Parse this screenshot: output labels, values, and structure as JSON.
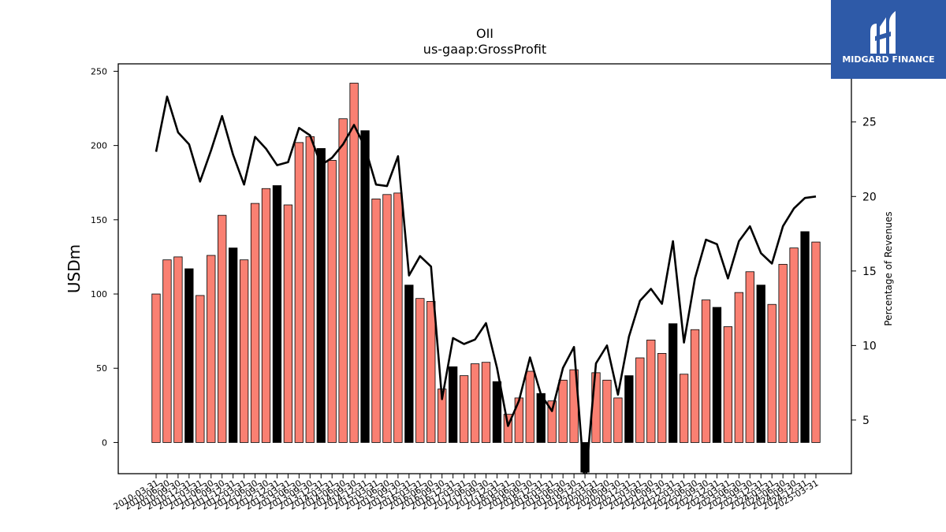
{
  "brand": {
    "name": "MIDGARD FINANCE",
    "bg_color": "#2e5aa8"
  },
  "chart_data": {
    "type": "bar",
    "title": "OII",
    "subtitle": "us-gaap:GrossProfit",
    "ylabel": "USDm",
    "y2label": "Percentage of Revenues",
    "ylim": [
      -21,
      255
    ],
    "y2lim": [
      1.4,
      28.9
    ],
    "yticks": [
      0,
      50,
      100,
      150,
      200,
      250
    ],
    "y2ticks": [
      5,
      10,
      15,
      20,
      25
    ],
    "grid": false,
    "categories": [
      "2010-03-31",
      "2010-06-30",
      "2010-09-30",
      "2010-12-31",
      "2011-03-31",
      "2011-06-30",
      "2011-09-30",
      "2011-12-31",
      "2012-03-31",
      "2012-06-30",
      "2012-09-30",
      "2012-12-31",
      "2013-03-31",
      "2013-06-30",
      "2013-09-30",
      "2013-12-31",
      "2014-03-31",
      "2014-06-30",
      "2014-09-30",
      "2014-12-31",
      "2015-03-31",
      "2015-06-30",
      "2015-09-30",
      "2015-12-31",
      "2016-03-31",
      "2016-06-30",
      "2016-09-30",
      "2016-12-31",
      "2017-03-31",
      "2017-06-30",
      "2017-09-30",
      "2017-12-31",
      "2018-03-31",
      "2018-06-30",
      "2018-09-30",
      "2018-12-31",
      "2019-03-31",
      "2019-06-30",
      "2019-09-30",
      "2019-12-31",
      "2020-03-31",
      "2020-06-30",
      "2020-09-30",
      "2020-12-31",
      "2021-03-31",
      "2021-06-30",
      "2021-09-30",
      "2021-12-31",
      "2022-03-31",
      "2022-06-30",
      "2022-09-30",
      "2022-12-31",
      "2023-03-31",
      "2023-06-30",
      "2023-09-30",
      "2023-12-31",
      "2024-03-31",
      "2024-06-30",
      "2024-09-30",
      "2024-12-31",
      "2025-03-31"
    ],
    "series": [
      {
        "kind": "bar",
        "axis": "left",
        "color": "#fa8072",
        "q4_color": "#000000",
        "values": [
          100,
          123,
          125,
          117,
          99,
          126,
          153,
          131,
          123,
          161,
          171,
          173,
          160,
          202,
          206,
          198,
          190,
          218,
          242,
          210,
          164,
          167,
          168,
          106,
          97,
          95,
          36,
          51,
          45,
          53,
          54,
          41,
          19,
          30,
          48,
          33,
          28,
          42,
          49,
          -20,
          47,
          42,
          30,
          45,
          57,
          69,
          60,
          80,
          46,
          76,
          96,
          91,
          78,
          101,
          115,
          106,
          93,
          120,
          131,
          142,
          135
        ]
      },
      {
        "kind": "line",
        "axis": "right",
        "color": "#000000",
        "values": [
          23,
          26.7,
          24.3,
          23.5,
          21,
          23.1,
          25.4,
          22.8,
          20.8,
          24,
          23.2,
          22.1,
          22.3,
          24.6,
          24.1,
          22.1,
          22.6,
          23.5,
          24.8,
          23.3,
          20.8,
          20.7,
          22.7,
          14.7,
          16,
          15.3,
          6.4,
          10.5,
          10.1,
          10.4,
          11.5,
          8.5,
          4.6,
          6.3,
          9.2,
          6.7,
          5.6,
          8.5,
          9.9,
          0.5,
          8.8,
          10,
          6.7,
          10.6,
          13,
          13.8,
          12.8,
          17,
          10.2,
          14.5,
          17.1,
          16.8,
          14.5,
          17,
          18,
          16.2,
          15.5,
          18,
          19.2,
          19.9,
          20
        ]
      }
    ]
  }
}
